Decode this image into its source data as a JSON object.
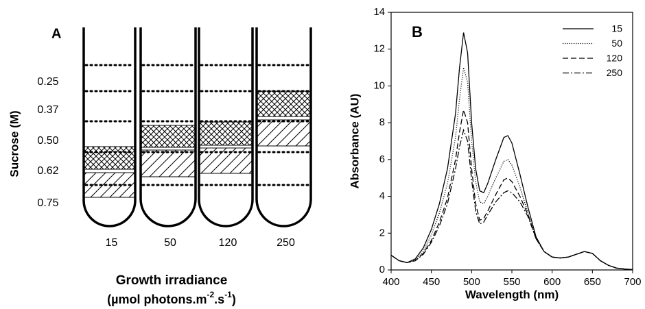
{
  "panel_a": {
    "label": "A",
    "sucrose_axis_label": "Sucrose (M)",
    "sucrose_levels": [
      "0.25",
      "0.37",
      "0.50",
      "0.62",
      "0.75"
    ],
    "tubes": [
      "15",
      "50",
      "120",
      "250"
    ],
    "x_axis_title": "Growth irradiance",
    "x_axis_units": [
      "(µmol photons.m",
      "-2",
      ".s",
      "-1",
      ")"
    ]
  },
  "chart_data": {
    "type": "line",
    "panel_label": "B",
    "x_label": "Wavelength (nm)",
    "y_label": "Absorbance (AU)",
    "x": [
      400,
      410,
      420,
      430,
      440,
      450,
      460,
      470,
      480,
      485,
      490,
      495,
      500,
      505,
      510,
      515,
      520,
      530,
      540,
      545,
      550,
      560,
      565,
      570,
      580,
      590,
      600,
      610,
      620,
      630,
      640,
      650,
      660,
      670,
      680,
      690,
      700
    ],
    "series": [
      {
        "name": "15",
        "color": "#000000",
        "dash": "solid",
        "values": [
          0.8,
          0.5,
          0.4,
          0.6,
          1.2,
          2.2,
          3.6,
          5.5,
          8.5,
          11.0,
          12.9,
          11.8,
          8.0,
          5.5,
          4.3,
          4.2,
          4.7,
          6.0,
          7.2,
          7.3,
          6.9,
          5.2,
          4.3,
          3.4,
          1.8,
          1.0,
          0.7,
          0.65,
          0.7,
          0.85,
          1.0,
          0.9,
          0.5,
          0.25,
          0.1,
          0.05,
          0.02
        ]
      },
      {
        "name": "50",
        "color": "#000000",
        "dash": "dotted",
        "values": [
          0.8,
          0.5,
          0.4,
          0.55,
          1.0,
          1.9,
          3.1,
          4.7,
          7.2,
          9.3,
          11.0,
          10.2,
          7.0,
          4.8,
          3.7,
          3.6,
          4.0,
          5.0,
          5.9,
          6.0,
          5.7,
          4.5,
          3.8,
          3.1,
          1.7,
          1.0,
          0.7,
          0.65,
          0.7,
          0.85,
          1.0,
          0.9,
          0.5,
          0.25,
          0.1,
          0.05,
          0.02
        ]
      },
      {
        "name": "120",
        "color": "#000000",
        "dash": "dashed",
        "values": [
          0.8,
          0.5,
          0.4,
          0.5,
          0.9,
          1.6,
          2.6,
          3.9,
          6.0,
          7.5,
          8.7,
          8.0,
          5.5,
          3.6,
          2.7,
          2.8,
          3.2,
          4.1,
          4.9,
          5.0,
          4.8,
          4.0,
          3.5,
          3.0,
          1.7,
          1.0,
          0.7,
          0.65,
          0.7,
          0.85,
          1.0,
          0.9,
          0.5,
          0.25,
          0.1,
          0.05,
          0.02
        ]
      },
      {
        "name": "250",
        "color": "#000000",
        "dash": "dashdot",
        "values": [
          0.8,
          0.5,
          0.4,
          0.5,
          0.85,
          1.5,
          2.4,
          3.6,
          5.5,
          6.7,
          7.6,
          7.0,
          4.9,
          3.2,
          2.5,
          2.6,
          3.0,
          3.7,
          4.2,
          4.3,
          4.2,
          3.7,
          3.3,
          2.9,
          1.7,
          1.0,
          0.7,
          0.65,
          0.7,
          0.85,
          1.0,
          0.9,
          0.5,
          0.25,
          0.1,
          0.05,
          0.02
        ]
      }
    ],
    "xlim": [
      400,
      700
    ],
    "xticks": [
      400,
      450,
      500,
      550,
      600,
      650,
      700
    ],
    "ylim": [
      0,
      14
    ],
    "yticks": [
      0,
      2,
      4,
      6,
      8,
      10,
      12,
      14
    ],
    "legend": "upper right"
  }
}
